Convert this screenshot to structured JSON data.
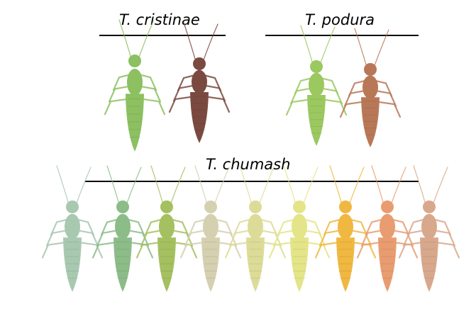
{
  "groups": {
    "cristinae": {
      "label": "T. cristinae",
      "colors": [
        "#8cc060",
        "#7a4a40"
      ]
    },
    "podura": {
      "label": "T. podura",
      "colors": [
        "#9cc860",
        "#b87858"
      ]
    },
    "chumash": {
      "label": "T. chumash",
      "colors": [
        "#a8c8b0",
        "#8cbc88",
        "#a4c060",
        "#d4d0b0",
        "#dcdc98",
        "#e4e488",
        "#f0b840",
        "#e89c70",
        "#d8a88c"
      ]
    }
  }
}
